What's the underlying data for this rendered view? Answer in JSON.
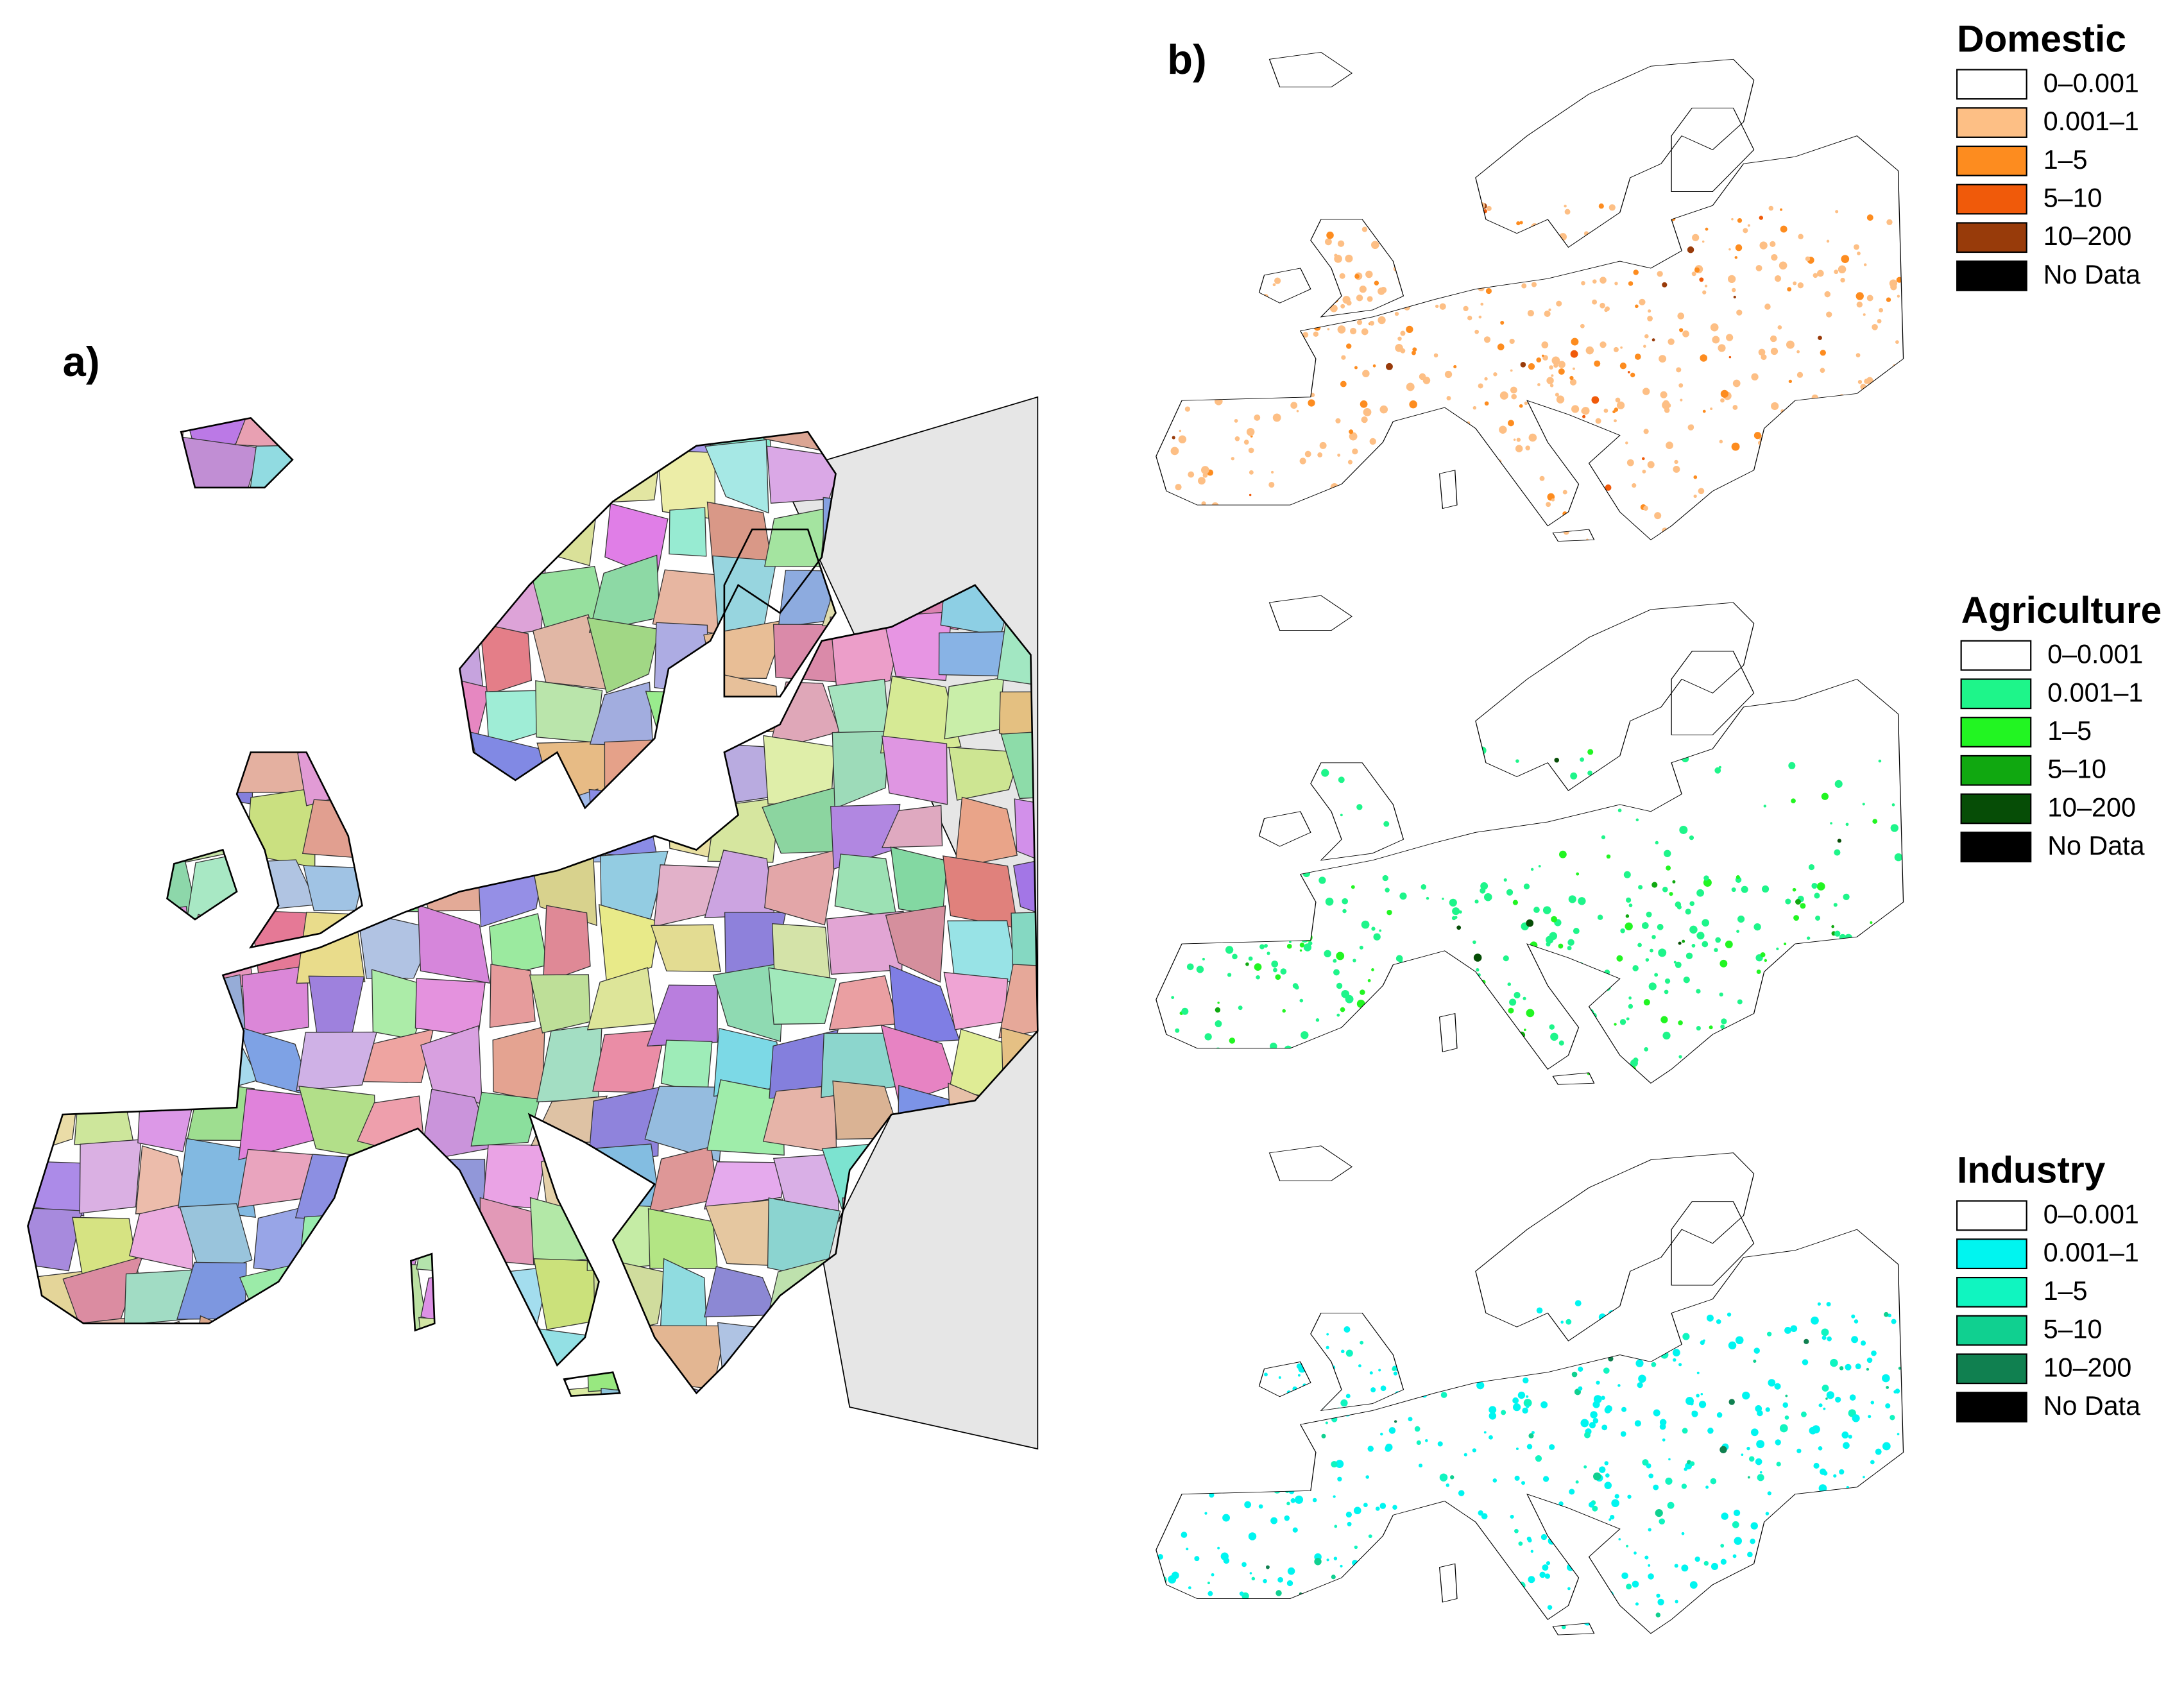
{
  "panels": {
    "a": {
      "label": "a)"
    },
    "b": {
      "label": "b)"
    }
  },
  "legends": [
    {
      "title": "Domestic",
      "entries": [
        {
          "label": "0–0.001",
          "color": "#ffffff"
        },
        {
          "label": "0.001–1",
          "color": "#fdbf85"
        },
        {
          "label": "1–5",
          "color": "#fd8c1f"
        },
        {
          "label": "5–10",
          "color": "#f05a0a"
        },
        {
          "label": "10–200",
          "color": "#983b0a"
        },
        {
          "label": "No Data",
          "color": "#000000"
        }
      ]
    },
    {
      "title": "Agriculture",
      "entries": [
        {
          "label": "0–0.001",
          "color": "#ffffff"
        },
        {
          "label": "0.001–1",
          "color": "#1ef58a"
        },
        {
          "label": "1–5",
          "color": "#22f522"
        },
        {
          "label": "5–10",
          "color": "#10a810"
        },
        {
          "label": "10–200",
          "color": "#064d06"
        },
        {
          "label": "No Data",
          "color": "#000000"
        }
      ]
    },
    {
      "title": "Industry",
      "entries": [
        {
          "label": "0–0.001",
          "color": "#ffffff"
        },
        {
          "label": "0.001–1",
          "color": "#00f5f0"
        },
        {
          "label": "1–5",
          "color": "#10f5c0"
        },
        {
          "label": "5–10",
          "color": "#10d090"
        },
        {
          "label": "10–200",
          "color": "#108050"
        },
        {
          "label": "No Data",
          "color": "#000000"
        }
      ]
    }
  ]
}
